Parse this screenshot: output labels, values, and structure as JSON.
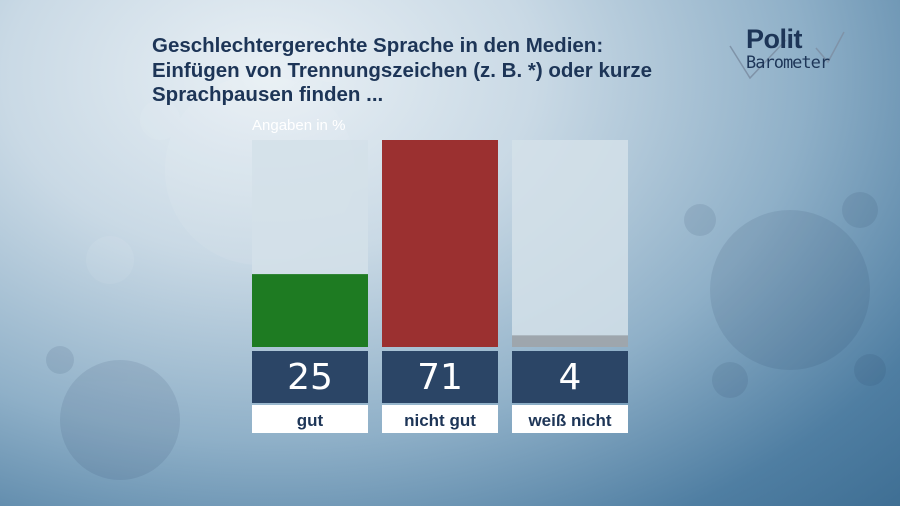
{
  "title_lines": [
    "Geschlechtergerechte Sprache in den Medien:",
    "Einfügen von Trennungszeichen (z. B. *) oder kurze",
    "Sprachpausen finden ..."
  ],
  "logo": {
    "line1": "Polit",
    "line2": "Barometer"
  },
  "unit_label": "Angaben in %",
  "colors": {
    "bar_bg": "#d3e0e9",
    "value_box": "#2b4566",
    "label_box": "#ffffff",
    "text_dark": "#1d3557"
  },
  "chart_data": {
    "type": "bar",
    "categories": [
      "gut",
      "nicht gut",
      "weiß nicht"
    ],
    "values": [
      25,
      71,
      4
    ],
    "colors": [
      "#1e7b22",
      "#9b3030",
      "#9ea6ad"
    ],
    "ylim": [
      0,
      71
    ],
    "title": "Geschlechtergerechte Sprache in den Medien: Einfügen von Trennungszeichen (z. B. *) oder kurze Sprachpausen finden ...",
    "ylabel": "Angaben in %",
    "grid": false,
    "legend": "none"
  }
}
